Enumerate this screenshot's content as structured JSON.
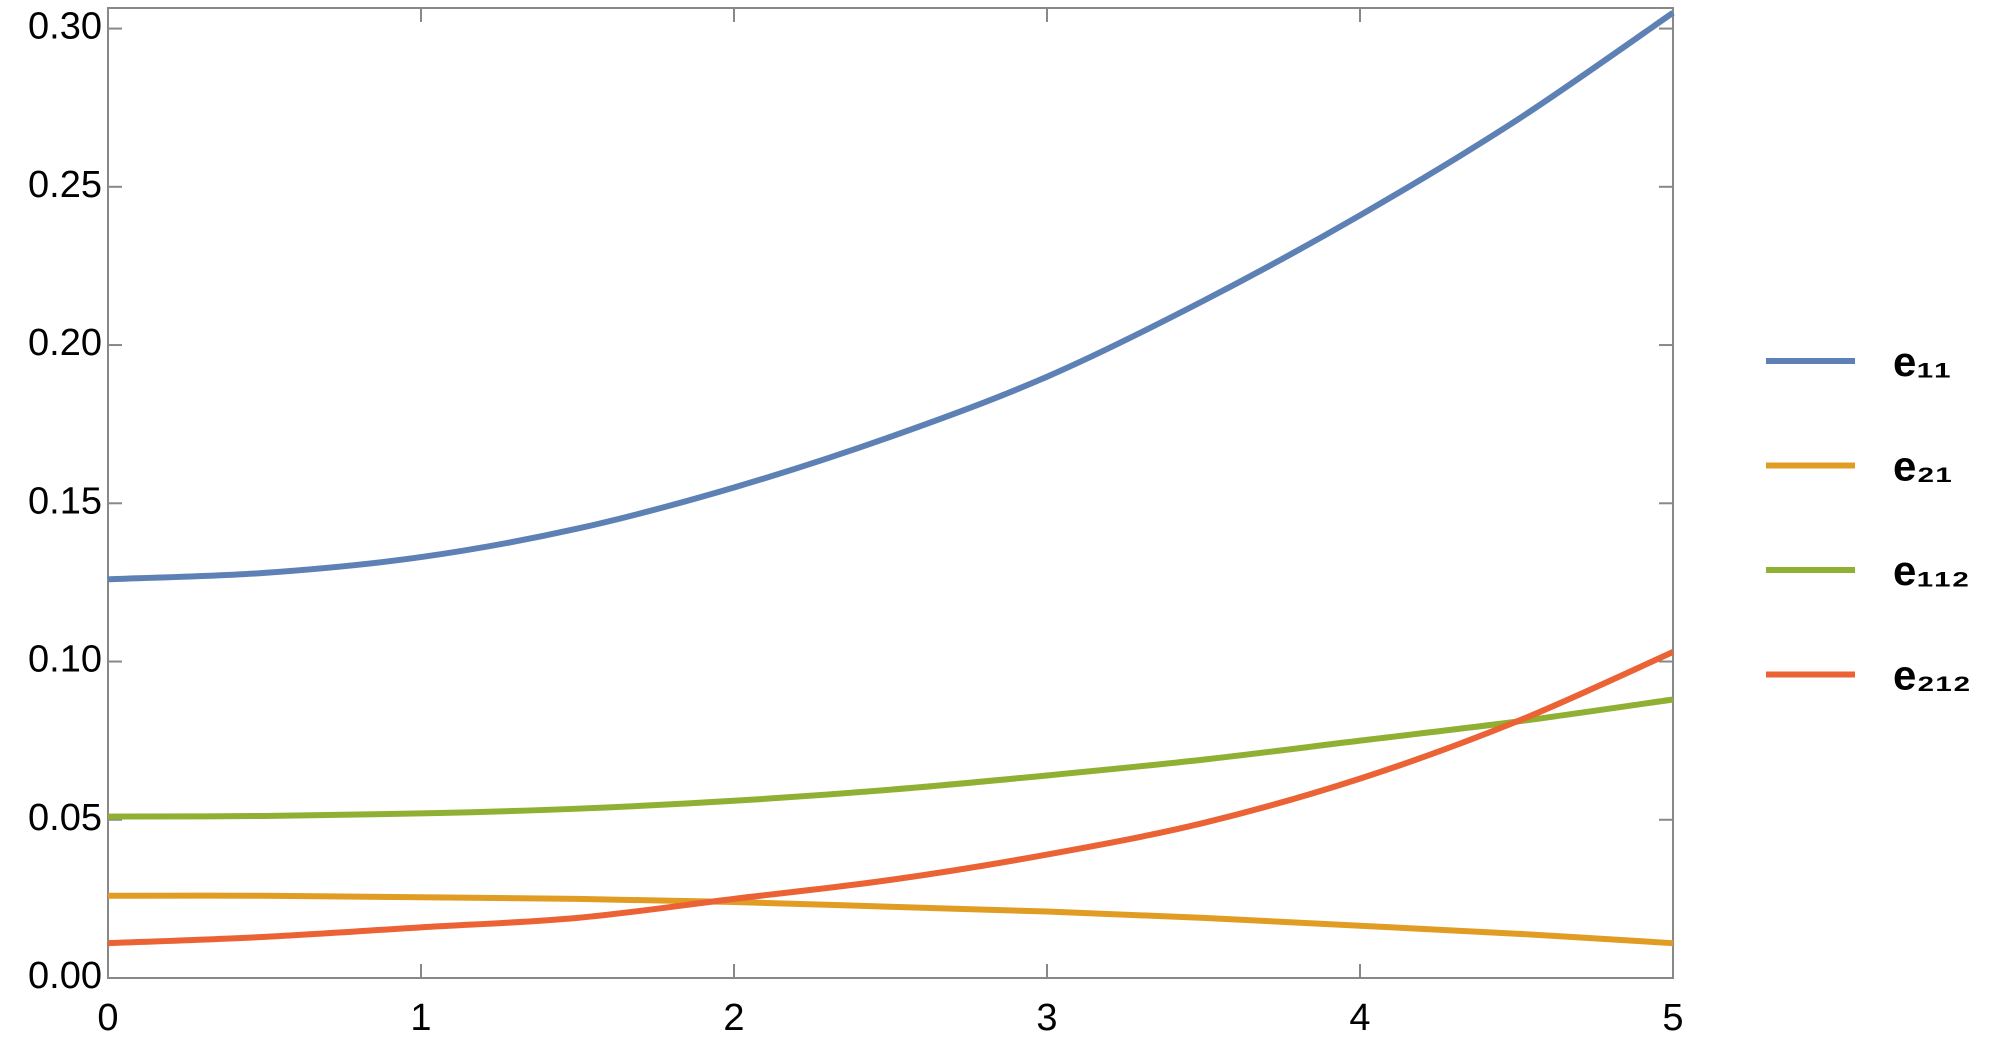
{
  "chart_data": {
    "type": "line",
    "x": [
      0,
      0.5,
      1,
      1.5,
      2,
      2.5,
      3,
      3.5,
      4,
      4.5,
      5
    ],
    "series": [
      {
        "name": "e₁₁",
        "color": "#5e81b5",
        "values": [
          0.126,
          0.128,
          0.133,
          0.142,
          0.155,
          0.171,
          0.19,
          0.214,
          0.241,
          0.271,
          0.305
        ]
      },
      {
        "name": "e₂₁",
        "color": "#e19c24",
        "values": [
          0.026,
          0.026,
          0.0255,
          0.025,
          0.024,
          0.0225,
          0.021,
          0.019,
          0.0165,
          0.014,
          0.011
        ]
      },
      {
        "name": "e₁₁₂",
        "color": "#8fb032",
        "values": [
          0.051,
          0.0512,
          0.052,
          0.0535,
          0.056,
          0.0595,
          0.064,
          0.069,
          0.075,
          0.081,
          0.088
        ]
      },
      {
        "name": "e₂₁₂",
        "color": "#eb6235",
        "values": [
          0.011,
          0.013,
          0.016,
          0.019,
          0.025,
          0.031,
          0.039,
          0.049,
          0.063,
          0.081,
          0.103
        ]
      }
    ],
    "xlim": [
      0,
      5
    ],
    "xticks": [
      0,
      1,
      2,
      3,
      4,
      5
    ],
    "ylim": [
      0,
      0.3065
    ],
    "yticks": [
      {
        "value": 0,
        "label": "0.00"
      },
      {
        "value": 0.05,
        "label": "0.05"
      },
      {
        "value": 0.1,
        "label": "0.10"
      },
      {
        "value": 0.15,
        "label": "0.15"
      },
      {
        "value": 0.2,
        "label": "0.20"
      },
      {
        "value": 0.25,
        "label": "0.25"
      },
      {
        "value": 0.3,
        "label": "0.30"
      }
    ],
    "legend": "right"
  }
}
